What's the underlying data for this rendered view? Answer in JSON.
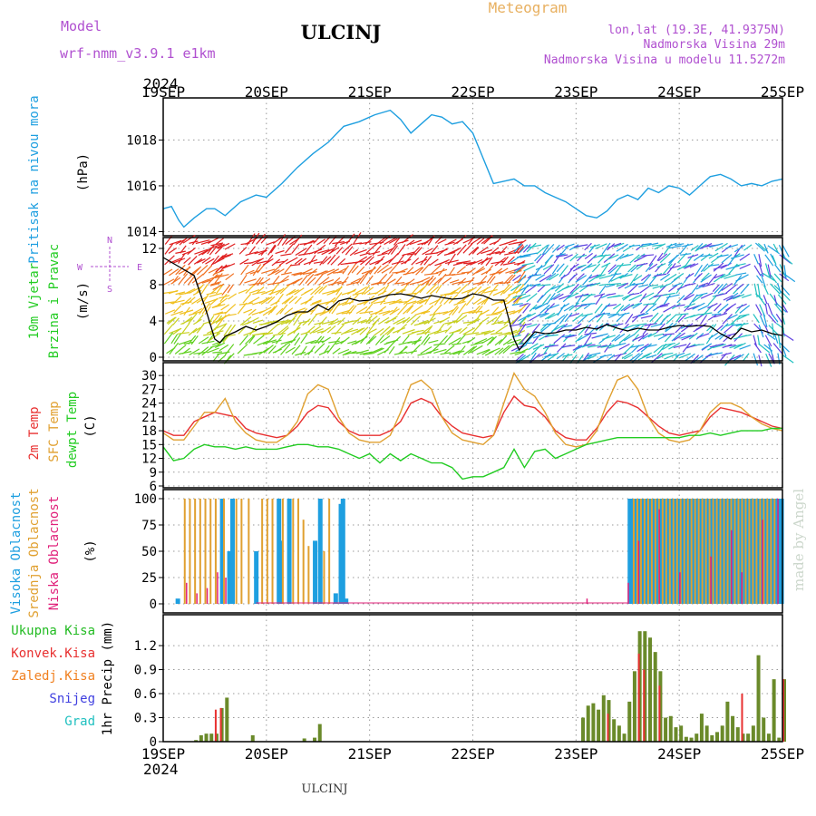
{
  "header": {
    "model_label": "Model",
    "model_name": "wrf-nmm_v3.9.1 e1km",
    "title": "ULCINJ",
    "meteogram_label": "Meteogram",
    "lonlat": "lon,lat (19.3E, 41.9375N)",
    "altitude": "Nadmorska Visina 29m",
    "model_altitude": "Nadmorska Visina u modelu 11.5272m"
  },
  "footer": {
    "station": "ULCINJ",
    "credit": "made by Angel"
  },
  "time_axis": {
    "year": "2024",
    "labels": [
      "19SEP",
      "20SEP",
      "21SEP",
      "22SEP",
      "23SEP",
      "24SEP",
      "25SEP"
    ]
  },
  "colors": {
    "pressure": "#1e9fe0",
    "wind_label": "#22cc22",
    "temp2m": "#e83030",
    "sfc_temp": "#e0a030",
    "dewpt": "#22cc22",
    "high_cloud": "#1e9fe0",
    "mid_cloud": "#e0a030",
    "low_cloud": "#e0207a",
    "total_precip": "#22bb22",
    "conv_precip": "#e83030",
    "frozen_precip": "#f08020",
    "snow": "#4040e0",
    "hail": "#20c0c0",
    "header_purple": "#b050d0",
    "meteogram_label": "#e8b060"
  },
  "chart_data": [
    {
      "type": "line",
      "panel": "pressure",
      "ylabel_lines": [
        "Pritisak na nivou mora",
        "(hPa)"
      ],
      "yticks": [
        "1014",
        "1016",
        "1018"
      ],
      "ylim": [
        1013.9,
        1019.6
      ],
      "x_unit": "days since 19SEP 00UTC",
      "series": [
        {
          "name": "Pritisak na nivou mora",
          "x": [
            0,
            0.08,
            0.15,
            0.2,
            0.3,
            0.42,
            0.5,
            0.6,
            0.75,
            0.9,
            1.0,
            1.15,
            1.3,
            1.45,
            1.6,
            1.75,
            1.9,
            2.05,
            2.2,
            2.3,
            2.4,
            2.5,
            2.6,
            2.7,
            2.8,
            2.9,
            3.0,
            3.1,
            3.2,
            3.3,
            3.4,
            3.5,
            3.6,
            3.7,
            3.8,
            3.9,
            4.0,
            4.1,
            4.2,
            4.3,
            4.4,
            4.5,
            4.6,
            4.7,
            4.8,
            4.9,
            5.0,
            5.1,
            5.2,
            5.3,
            5.4,
            5.5,
            5.6,
            5.7,
            5.8,
            5.9,
            6.0
          ],
          "values": [
            1015.0,
            1015.1,
            1014.5,
            1014.2,
            1014.6,
            1015.0,
            1015.0,
            1014.7,
            1015.3,
            1015.6,
            1015.5,
            1016.1,
            1016.8,
            1017.4,
            1017.9,
            1018.6,
            1018.8,
            1019.1,
            1019.3,
            1018.9,
            1018.3,
            1018.7,
            1019.1,
            1019.0,
            1018.7,
            1018.8,
            1018.3,
            1017.2,
            1016.1,
            1016.2,
            1016.3,
            1016.0,
            1016.0,
            1015.7,
            1015.5,
            1015.3,
            1015.0,
            1014.7,
            1014.6,
            1014.9,
            1015.4,
            1015.6,
            1015.4,
            1015.9,
            1015.7,
            1016.0,
            1015.9,
            1015.6,
            1016.0,
            1016.4,
            1016.5,
            1016.3,
            1016.0,
            1016.1,
            1016.0,
            1016.2,
            1016.3
          ]
        }
      ]
    },
    {
      "type": "line",
      "panel": "wind",
      "ylabel_lines": [
        "10m Vjetar",
        "Brzina i Pravac",
        "(m/s)"
      ],
      "compass": {
        "n": "N",
        "s": "S",
        "w": "W",
        "e": "E"
      },
      "yticks": [
        "0",
        "4",
        "8",
        "12"
      ],
      "ylim": [
        0,
        13
      ],
      "series": [
        {
          "name": "Brzina",
          "x": [
            0,
            0.15,
            0.3,
            0.42,
            0.5,
            0.55,
            0.6,
            0.7,
            0.8,
            0.9,
            1.0,
            1.1,
            1.2,
            1.3,
            1.4,
            1.5,
            1.6,
            1.7,
            1.8,
            1.9,
            2.0,
            2.1,
            2.2,
            2.3,
            2.4,
            2.5,
            2.6,
            2.7,
            2.8,
            2.9,
            3.0,
            3.1,
            3.2,
            3.3,
            3.4,
            3.45,
            3.5,
            3.6,
            3.7,
            3.8,
            3.9,
            4.0,
            4.1,
            4.2,
            4.3,
            4.4,
            4.5,
            4.6,
            4.7,
            4.8,
            4.9,
            5.0,
            5.1,
            5.2,
            5.3,
            5.4,
            5.5,
            5.6,
            5.7,
            5.8,
            5.9,
            6.0
          ],
          "values": [
            11,
            10,
            9,
            5,
            2,
            1.6,
            2.3,
            2.8,
            3.4,
            3.0,
            3.4,
            3.9,
            4.6,
            5.0,
            5.0,
            5.8,
            5.2,
            6.2,
            6.5,
            6.2,
            6.3,
            6.6,
            6.9,
            7.0,
            6.8,
            6.5,
            6.8,
            6.6,
            6.4,
            6.5,
            7.0,
            6.8,
            6.3,
            6.3,
            2.0,
            0.8,
            1.5,
            2.8,
            2.6,
            2.7,
            3.0,
            3.0,
            3.3,
            3.1,
            3.6,
            3.2,
            2.9,
            3.2,
            3.0,
            3.0,
            3.3,
            3.5,
            3.4,
            3.5,
            3.4,
            2.6,
            2.0,
            3.2,
            2.8,
            3.0,
            2.6,
            2.4
          ]
        }
      ]
    },
    {
      "type": "line",
      "panel": "temperature",
      "ylabel_lines": [
        "2m Temp",
        "SFC Temp",
        "dewpt Temp",
        "(C)"
      ],
      "yticks": [
        "6",
        "9",
        "12",
        "15",
        "18",
        "21",
        "24",
        "27",
        "30"
      ],
      "ylim": [
        6,
        32
      ],
      "series": [
        {
          "name": "2m Temp",
          "x": [
            0,
            0.1,
            0.2,
            0.3,
            0.4,
            0.5,
            0.6,
            0.7,
            0.8,
            0.9,
            1.0,
            1.1,
            1.2,
            1.3,
            1.4,
            1.5,
            1.6,
            1.7,
            1.8,
            1.9,
            2.0,
            2.1,
            2.2,
            2.3,
            2.4,
            2.5,
            2.6,
            2.7,
            2.8,
            2.9,
            3.0,
            3.1,
            3.2,
            3.3,
            3.4,
            3.5,
            3.6,
            3.7,
            3.8,
            3.9,
            4.0,
            4.1,
            4.2,
            4.3,
            4.4,
            4.5,
            4.6,
            4.7,
            4.8,
            4.9,
            5.0,
            5.1,
            5.2,
            5.3,
            5.4,
            5.5,
            5.6,
            5.7,
            5.8,
            5.9,
            6.0
          ],
          "values": [
            18,
            17,
            17,
            20,
            21,
            22,
            21.5,
            21,
            18.5,
            17.5,
            17,
            16.5,
            17,
            19,
            22,
            23.5,
            23,
            20,
            18,
            17,
            17,
            17,
            18,
            20,
            24,
            25,
            24,
            21,
            19,
            17.5,
            17,
            16.5,
            17,
            22,
            25.5,
            23.5,
            23,
            21,
            18,
            16.5,
            16,
            16,
            18.5,
            22,
            24.5,
            24,
            23,
            21,
            19,
            17.5,
            17,
            17.5,
            18,
            21,
            23,
            22.5,
            22,
            21,
            20,
            19,
            18.5
          ]
        },
        {
          "name": "SFC Temp",
          "x": [
            0,
            0.1,
            0.2,
            0.3,
            0.4,
            0.5,
            0.6,
            0.7,
            0.8,
            0.9,
            1.0,
            1.1,
            1.2,
            1.3,
            1.4,
            1.5,
            1.6,
            1.7,
            1.8,
            1.9,
            2.0,
            2.1,
            2.2,
            2.3,
            2.4,
            2.5,
            2.6,
            2.7,
            2.8,
            2.9,
            3.0,
            3.1,
            3.2,
            3.3,
            3.4,
            3.5,
            3.6,
            3.7,
            3.8,
            3.9,
            4.0,
            4.1,
            4.2,
            4.3,
            4.4,
            4.5,
            4.6,
            4.7,
            4.8,
            4.9,
            5.0,
            5.1,
            5.2,
            5.3,
            5.4,
            5.5,
            5.6,
            5.7,
            5.8,
            5.9,
            6.0
          ],
          "values": [
            17.5,
            16,
            16,
            19,
            22,
            22,
            25,
            20,
            17.5,
            16,
            15.5,
            15.5,
            17,
            20,
            26,
            28,
            27,
            21,
            17.5,
            16,
            15.5,
            15.5,
            17,
            22,
            28,
            29,
            27,
            21,
            17.5,
            16,
            15.5,
            15,
            17,
            24,
            30.5,
            27,
            25.5,
            22,
            17.5,
            15,
            14.5,
            15,
            18,
            24,
            29,
            30,
            27,
            21,
            17.5,
            16,
            15.5,
            16,
            18,
            22,
            24,
            24,
            23,
            21,
            19.5,
            18.5,
            18
          ]
        },
        {
          "name": "dewpt Temp",
          "x": [
            0,
            0.1,
            0.2,
            0.3,
            0.4,
            0.5,
            0.6,
            0.7,
            0.8,
            0.9,
            1.0,
            1.1,
            1.2,
            1.3,
            1.4,
            1.5,
            1.6,
            1.7,
            1.8,
            1.9,
            2.0,
            2.1,
            2.2,
            2.3,
            2.4,
            2.5,
            2.6,
            2.7,
            2.8,
            2.9,
            3.0,
            3.1,
            3.2,
            3.3,
            3.4,
            3.5,
            3.6,
            3.7,
            3.8,
            3.9,
            4.0,
            4.1,
            4.2,
            4.3,
            4.4,
            4.5,
            4.6,
            4.7,
            4.8,
            4.9,
            5.0,
            5.1,
            5.2,
            5.3,
            5.4,
            5.5,
            5.6,
            5.7,
            5.8,
            5.9,
            6.0
          ],
          "values": [
            14.5,
            11.5,
            12,
            14,
            15,
            14.5,
            14.5,
            14,
            14.5,
            14,
            14,
            14,
            14.5,
            15,
            15,
            14.5,
            14.5,
            14,
            13,
            12,
            13,
            11,
            13,
            11.5,
            13,
            12,
            11,
            11,
            10,
            7.5,
            8,
            8,
            9,
            10,
            14,
            10,
            13.5,
            14,
            12,
            13,
            14,
            15,
            15.5,
            16,
            16.5,
            16.5,
            16.5,
            16.5,
            16.5,
            16.5,
            16.5,
            17,
            17,
            17.5,
            17,
            17.5,
            18,
            18,
            18,
            18.5,
            18.5
          ]
        }
      ]
    },
    {
      "type": "bar",
      "panel": "clouds",
      "ylabel_lines": [
        "Visoka Oblacnost",
        "Srednja Oblacnost",
        "Niska Oblacnost",
        "(%)"
      ],
      "yticks": [
        "0",
        "25",
        "50",
        "75",
        "100"
      ],
      "ylim": [
        0,
        100
      ],
      "series": [
        {
          "name": "Visoka Oblacnost",
          "x": [
            0.12,
            0.55,
            0.62,
            0.65,
            0.88,
            1.1,
            1.12,
            1.2,
            1.45,
            1.5,
            1.65,
            1.7,
            1.7,
            1.72,
            1.75
          ],
          "values": [
            5,
            100,
            50,
            100,
            50,
            100,
            60,
            100,
            60,
            100,
            10,
            90,
            95,
            100,
            5
          ]
        },
        {
          "name": "Srednja Oblacnost",
          "x": [
            0.2,
            0.25,
            0.3,
            0.35,
            0.4,
            0.45,
            0.5,
            0.58,
            0.7,
            0.75,
            0.82,
            0.95,
            1.0,
            1.05,
            1.15,
            1.25,
            1.3,
            1.35,
            1.4,
            1.55,
            1.6
          ],
          "values": [
            100,
            100,
            100,
            100,
            100,
            100,
            100,
            100,
            100,
            100,
            100,
            100,
            100,
            100,
            100,
            100,
            100,
            80,
            55,
            50,
            100
          ]
        },
        {
          "name": "Niska Oblacnost",
          "x": [
            0.22,
            0.32,
            0.42,
            0.52,
            0.6,
            4.1,
            4.5,
            4.6,
            4.8,
            5.0,
            5.3,
            5.5,
            5.6,
            5.8,
            5.95
          ],
          "values": [
            20,
            10,
            15,
            30,
            25,
            5,
            20,
            60,
            90,
            30,
            45,
            70,
            30,
            80,
            100
          ]
        }
      ],
      "block_ranges": [
        {
          "name": "Visoka Oblacnost",
          "from": 4.5,
          "to": 6.0,
          "value": 100
        },
        {
          "name": "Srednja Oblacnost",
          "from": 4.55,
          "to": 5.95,
          "value": 100
        }
      ]
    },
    {
      "type": "bar",
      "panel": "precip",
      "ylabel_lines": [
        "1hr Precip (mm)"
      ],
      "legend": [
        "Ukupna Kisa",
        "Konvek.Kisa",
        "Zaledj.Kisa",
        "Snijeg",
        "Grad"
      ],
      "yticks": [
        "0",
        "0.3",
        "0.6",
        "0.9",
        "1.2"
      ],
      "ylim": [
        0,
        1.45
      ],
      "series": [
        {
          "name": "Ukupna Kisa",
          "x": [
            0.3,
            0.35,
            0.4,
            0.45,
            0.5,
            0.55,
            0.6,
            0.85,
            1.35,
            1.45,
            1.5,
            4.05,
            4.1,
            4.15,
            4.2,
            4.25,
            4.3,
            4.35,
            4.4,
            4.45,
            4.5,
            4.55,
            4.6,
            4.65,
            4.7,
            4.75,
            4.8,
            4.85,
            4.9,
            4.95,
            5.0,
            5.05,
            5.1,
            5.15,
            5.2,
            5.25,
            5.3,
            5.35,
            5.4,
            5.45,
            5.5,
            5.55,
            5.6,
            5.65,
            5.7,
            5.75,
            5.8,
            5.85,
            5.9,
            5.95,
            6.0
          ],
          "values": [
            0.02,
            0.08,
            0.1,
            0.1,
            0.1,
            0.42,
            0.55,
            0.08,
            0.04,
            0.05,
            0.22,
            0.3,
            0.45,
            0.48,
            0.4,
            0.58,
            0.52,
            0.28,
            0.2,
            0.1,
            0.5,
            0.88,
            1.38,
            1.38,
            1.3,
            1.12,
            0.88,
            0.3,
            0.32,
            0.18,
            0.2,
            0.06,
            0.05,
            0.1,
            0.35,
            0.2,
            0.08,
            0.12,
            0.2,
            0.5,
            0.32,
            0.18,
            0.1,
            0.1,
            0.2,
            1.08,
            0.3,
            0.1,
            0.78,
            0.05,
            0.78
          ]
        },
        {
          "name": "Konvek.Kisa",
          "x": [
            0.5,
            0.55,
            4.3,
            4.6,
            4.65,
            4.8,
            5.6,
            6.0
          ],
          "values": [
            0.4,
            0.42,
            0.35,
            1.1,
            0.9,
            0.7,
            0.6,
            0.78
          ]
        }
      ]
    }
  ]
}
